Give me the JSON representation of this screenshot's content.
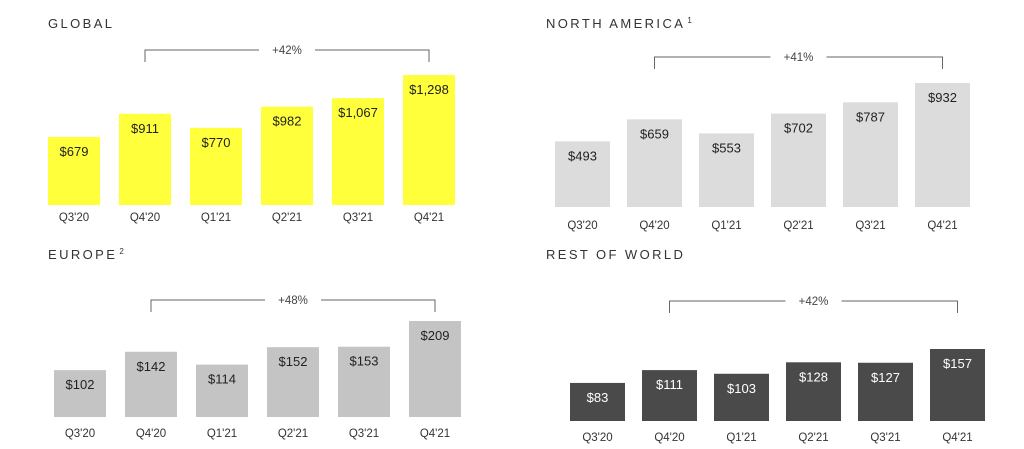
{
  "chart_data": [
    {
      "type": "bar",
      "title": "GLOBAL",
      "footnote": "",
      "categories": [
        "Q3'20",
        "Q4'20",
        "Q1'21",
        "Q2'21",
        "Q3'21",
        "Q4'21"
      ],
      "values": [
        679,
        911,
        770,
        982,
        1067,
        1298
      ],
      "value_labels": [
        "$679",
        "$911",
        "$770",
        "$982",
        "$1,067",
        "$1,298"
      ],
      "growth_annotation": "+42%",
      "bar_color": "#ffff3c",
      "label_color": "#222222"
    },
    {
      "type": "bar",
      "title": "NORTH AMERICA",
      "footnote": "1",
      "categories": [
        "Q3'20",
        "Q4'20",
        "Q1'21",
        "Q2'21",
        "Q3'21",
        "Q4'21"
      ],
      "values": [
        493,
        659,
        553,
        702,
        787,
        932
      ],
      "value_labels": [
        "$493",
        "$659",
        "$553",
        "$702",
        "$787",
        "$932"
      ],
      "growth_annotation": "+41%",
      "bar_color": "#dcdcdc",
      "label_color": "#222222"
    },
    {
      "type": "bar",
      "title": "EUROPE",
      "footnote": "2",
      "categories": [
        "Q3'20",
        "Q4'20",
        "Q1'21",
        "Q2'21",
        "Q3'21",
        "Q4'21"
      ],
      "values": [
        102,
        142,
        114,
        152,
        153,
        209
      ],
      "value_labels": [
        "$102",
        "$142",
        "$114",
        "$152",
        "$153",
        "$209"
      ],
      "growth_annotation": "+48%",
      "bar_color": "#c4c4c4",
      "label_color": "#222222"
    },
    {
      "type": "bar",
      "title": "REST OF WORLD",
      "footnote": "",
      "categories": [
        "Q3'20",
        "Q4'20",
        "Q1'21",
        "Q2'21",
        "Q3'21",
        "Q4'21"
      ],
      "values": [
        83,
        111,
        103,
        128,
        127,
        157
      ],
      "value_labels": [
        "$83",
        "$111",
        "$103",
        "$128",
        "$127",
        "$157"
      ],
      "growth_annotation": "+42%",
      "bar_color": "#4a4a4a",
      "label_color": "#ffffff"
    }
  ]
}
